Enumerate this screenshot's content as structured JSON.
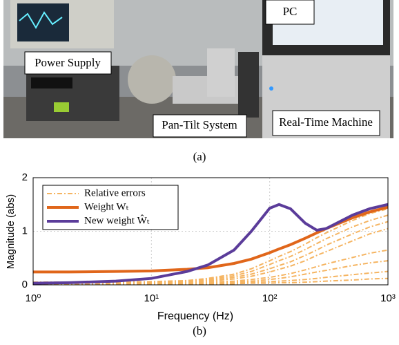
{
  "figure": {
    "photo_labels": [
      "PC",
      "Power Supply",
      "Pan-Tilt System",
      "Real-Time Machine"
    ],
    "caption_a": "(a)",
    "caption_b": "(b)"
  },
  "chart_data": {
    "type": "line",
    "x_label": "Frequency  (Hz)",
    "y_label": "Magnitude (abs)",
    "x": [
      1,
      2,
      5,
      10,
      20,
      30,
      50,
      70,
      100,
      120,
      150,
      200,
      250,
      300,
      500,
      700,
      1000
    ],
    "xlim": [
      1,
      1000
    ],
    "log_x": true,
    "xticks": [
      {
        "value": 1,
        "label": "10⁰"
      },
      {
        "value": 10,
        "label": "10¹"
      },
      {
        "value": 100,
        "label": "10²"
      },
      {
        "value": 1000,
        "label": "10³"
      }
    ],
    "ylim": [
      0,
      2
    ],
    "yticks": [
      0,
      1,
      2
    ],
    "grid": true,
    "legend": "upper left",
    "series": [
      {
        "name": "Relative errors",
        "color": "#f5b461",
        "dashed": true,
        "lines": [
          [
            0.05,
            0.05,
            0.05,
            0.06,
            0.08,
            0.12,
            0.2,
            0.3,
            0.45,
            0.53,
            0.62,
            0.76,
            0.88,
            0.97,
            1.2,
            1.33,
            1.42
          ],
          [
            0.05,
            0.05,
            0.05,
            0.06,
            0.07,
            0.1,
            0.17,
            0.25,
            0.38,
            0.45,
            0.53,
            0.66,
            0.77,
            0.86,
            1.08,
            1.2,
            1.3
          ],
          [
            0.04,
            0.04,
            0.04,
            0.05,
            0.06,
            0.08,
            0.14,
            0.2,
            0.3,
            0.36,
            0.43,
            0.55,
            0.65,
            0.74,
            0.95,
            1.08,
            1.18
          ],
          [
            0.04,
            0.04,
            0.04,
            0.04,
            0.05,
            0.07,
            0.11,
            0.16,
            0.24,
            0.29,
            0.35,
            0.45,
            0.55,
            0.62,
            0.82,
            0.95,
            1.05
          ],
          [
            0.03,
            0.03,
            0.03,
            0.03,
            0.04,
            0.05,
            0.07,
            0.1,
            0.14,
            0.17,
            0.21,
            0.28,
            0.34,
            0.39,
            0.51,
            0.59,
            0.65
          ],
          [
            0.02,
            0.02,
            0.02,
            0.02,
            0.03,
            0.04,
            0.05,
            0.07,
            0.1,
            0.12,
            0.15,
            0.2,
            0.24,
            0.27,
            0.36,
            0.41,
            0.45
          ],
          [
            0.02,
            0.02,
            0.02,
            0.02,
            0.02,
            0.03,
            0.04,
            0.05,
            0.06,
            0.07,
            0.08,
            0.1,
            0.12,
            0.14,
            0.19,
            0.22,
            0.25
          ],
          [
            0.01,
            0.01,
            0.01,
            0.01,
            0.01,
            0.02,
            0.02,
            0.03,
            0.03,
            0.04,
            0.04,
            0.05,
            0.06,
            0.07,
            0.09,
            0.11,
            0.12
          ]
        ]
      },
      {
        "name": "Weight Wₜ",
        "color": "#e0661a",
        "values": [
          0.24,
          0.24,
          0.25,
          0.26,
          0.29,
          0.32,
          0.4,
          0.48,
          0.6,
          0.67,
          0.75,
          0.87,
          0.97,
          1.05,
          1.25,
          1.36,
          1.45
        ]
      },
      {
        "name": "New weight Ŵₜ",
        "color": "#5b3c9a",
        "values": [
          0.03,
          0.04,
          0.07,
          0.12,
          0.25,
          0.37,
          0.65,
          1.0,
          1.43,
          1.5,
          1.42,
          1.15,
          1.02,
          1.05,
          1.3,
          1.42,
          1.5
        ]
      }
    ]
  }
}
